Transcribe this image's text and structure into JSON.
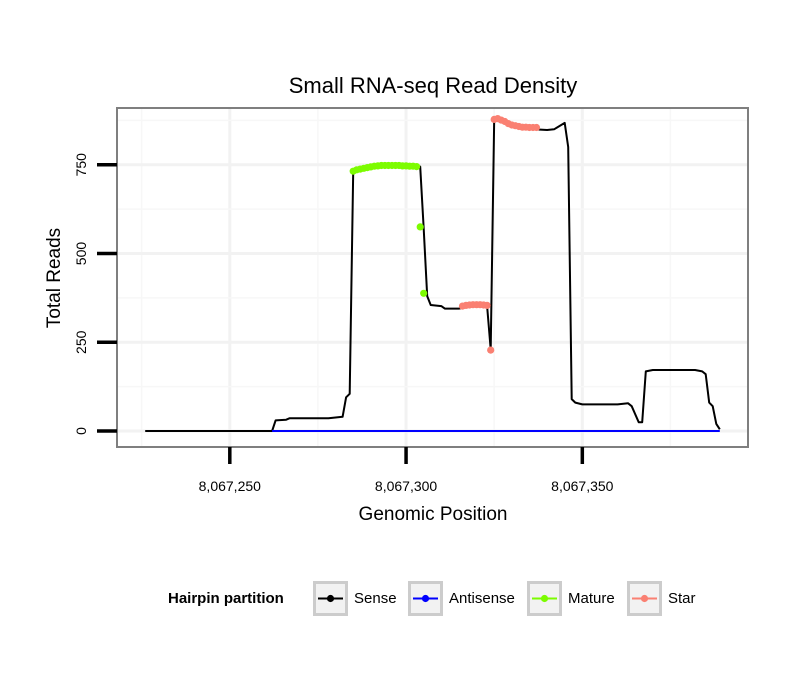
{
  "chart_data": {
    "type": "line",
    "title": "Small RNA-seq Read Density",
    "xlabel": "Genomic Position",
    "ylabel": "Total Reads",
    "xlim": [
      8067218,
      8067397
    ],
    "ylim": [
      -45,
      910
    ],
    "x_ticks": [
      8067250,
      8067300,
      8067350
    ],
    "x_tick_labels": [
      "8,067,250",
      "8,067,300",
      "8,067,350"
    ],
    "y_ticks": [
      0,
      250,
      500,
      750
    ],
    "y_tick_labels": [
      "0",
      "250",
      "500",
      "750"
    ],
    "grid": true,
    "legend": {
      "title": "Hairpin partition",
      "position": "bottom",
      "entries": [
        {
          "label": "Sense",
          "color": "#000000"
        },
        {
          "label": "Antisense",
          "color": "#0000ff"
        },
        {
          "label": "Mature",
          "color": "#7cfc00"
        },
        {
          "label": "Star",
          "color": "#fa8072"
        }
      ]
    },
    "series": [
      {
        "name": "Sense",
        "color": "#000000",
        "style": "line",
        "points": [
          [
            8067226,
            0
          ],
          [
            8067262,
            0
          ],
          [
            8067263,
            30
          ],
          [
            8067266,
            32
          ],
          [
            8067267,
            36
          ],
          [
            8067271,
            36
          ],
          [
            8067278,
            36
          ],
          [
            8067282,
            40
          ],
          [
            8067283,
            95
          ],
          [
            8067284,
            105
          ],
          [
            8067285,
            730
          ],
          [
            8067289,
            740
          ],
          [
            8067296,
            750
          ],
          [
            8067304,
            745
          ],
          [
            8067305,
            570
          ],
          [
            8067306,
            380
          ],
          [
            8067307,
            355
          ],
          [
            8067310,
            352
          ],
          [
            8067311,
            345
          ],
          [
            8067315,
            345
          ],
          [
            8067318,
            352
          ],
          [
            8067323,
            352
          ],
          [
            8067324,
            230
          ],
          [
            8067325,
            880
          ],
          [
            8067329,
            862
          ],
          [
            8067333,
            852
          ],
          [
            8067340,
            848
          ],
          [
            8067342,
            850
          ],
          [
            8067345,
            868
          ],
          [
            8067346,
            800
          ],
          [
            8067347,
            90
          ],
          [
            8067348,
            80
          ],
          [
            8067350,
            75
          ],
          [
            8067355,
            75
          ],
          [
            8067360,
            75
          ],
          [
            8067363,
            78
          ],
          [
            8067364,
            70
          ],
          [
            8067366,
            25
          ],
          [
            8067367,
            25
          ],
          [
            8067368,
            168
          ],
          [
            8067370,
            172
          ],
          [
            8067382,
            172
          ],
          [
            8067384,
            168
          ],
          [
            8067385,
            160
          ],
          [
            8067386,
            80
          ],
          [
            8067387,
            70
          ],
          [
            8067388,
            20
          ],
          [
            8067389,
            5
          ]
        ]
      },
      {
        "name": "Antisense",
        "color": "#0000ff",
        "style": "line",
        "points": [
          [
            8067262,
            0
          ],
          [
            8067389,
            0
          ]
        ]
      },
      {
        "name": "Mature",
        "color": "#7cfc00",
        "style": "points",
        "points": [
          [
            8067285,
            732
          ],
          [
            8067286,
            736
          ],
          [
            8067287,
            738
          ],
          [
            8067288,
            740
          ],
          [
            8067289,
            742
          ],
          [
            8067290,
            744
          ],
          [
            8067291,
            746
          ],
          [
            8067292,
            747
          ],
          [
            8067293,
            748
          ],
          [
            8067294,
            748
          ],
          [
            8067295,
            748
          ],
          [
            8067296,
            748
          ],
          [
            8067297,
            748
          ],
          [
            8067298,
            748
          ],
          [
            8067299,
            747
          ],
          [
            8067300,
            747
          ],
          [
            8067301,
            746
          ],
          [
            8067302,
            746
          ],
          [
            8067303,
            745
          ],
          [
            8067304,
            575
          ],
          [
            8067305,
            388
          ]
        ]
      },
      {
        "name": "Star",
        "color": "#fa8072",
        "style": "points",
        "points": [
          [
            8067316,
            352
          ],
          [
            8067317,
            354
          ],
          [
            8067318,
            355
          ],
          [
            8067319,
            356
          ],
          [
            8067320,
            356
          ],
          [
            8067321,
            356
          ],
          [
            8067322,
            355
          ],
          [
            8067323,
            354
          ],
          [
            8067324,
            228
          ],
          [
            8067325,
            878
          ],
          [
            8067326,
            880
          ],
          [
            8067327,
            876
          ],
          [
            8067328,
            872
          ],
          [
            8067329,
            866
          ],
          [
            8067330,
            862
          ],
          [
            8067331,
            860
          ],
          [
            8067332,
            858
          ],
          [
            8067333,
            856
          ],
          [
            8067334,
            856
          ],
          [
            8067335,
            855
          ],
          [
            8067336,
            855
          ],
          [
            8067337,
            855
          ]
        ]
      }
    ]
  }
}
